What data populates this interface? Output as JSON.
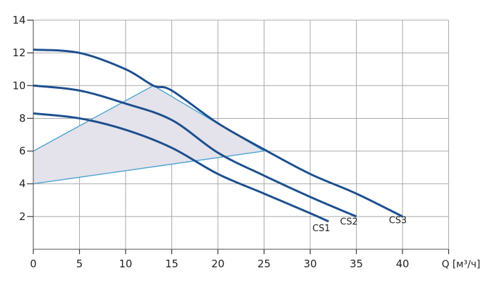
{
  "chart_data": {
    "type": "line",
    "title": "",
    "xlabel": "Q [м³/ч]",
    "ylabel": "",
    "xlim": [
      0,
      45
    ],
    "ylim": [
      0,
      14
    ],
    "x_ticks": [
      0,
      5,
      10,
      15,
      20,
      25,
      30,
      35,
      40
    ],
    "y_ticks": [
      2,
      4,
      6,
      8,
      10,
      12,
      14
    ],
    "grid": true,
    "legend": "inline labels at curve ends",
    "series": [
      {
        "name": "CS1",
        "x": [
          0,
          5,
          10,
          15,
          20,
          25,
          30,
          32
        ],
        "y": [
          8.3,
          8.0,
          7.3,
          6.2,
          4.6,
          3.4,
          2.2,
          1.7
        ]
      },
      {
        "name": "CS2",
        "x": [
          0,
          5,
          10,
          15,
          20,
          25,
          30,
          35
        ],
        "y": [
          10.0,
          9.7,
          8.9,
          7.9,
          5.9,
          4.5,
          3.2,
          2.0
        ]
      },
      {
        "name": "CS3",
        "x": [
          0,
          5,
          10,
          13,
          15,
          20,
          25,
          30,
          35,
          40
        ],
        "y": [
          12.2,
          12.0,
          11.0,
          10.0,
          9.7,
          7.7,
          6.1,
          4.6,
          3.4,
          2.0
        ]
      }
    ],
    "shaded_region": {
      "description": "operating area",
      "polygon": [
        [
          0,
          6
        ],
        [
          13,
          10
        ],
        [
          25,
          6
        ],
        [
          0,
          4
        ]
      ]
    },
    "label_positions": {
      "CS1": [
        31.2,
        1.1
      ],
      "CS2": [
        34.2,
        1.5
      ],
      "CS3": [
        39.5,
        1.6
      ]
    }
  },
  "colors": {
    "curve": "#1c4f8e",
    "boundary": "#4aa3d2",
    "fill": "#e4e2ea",
    "grid": "#a8a8a8",
    "axis": "#888888"
  }
}
